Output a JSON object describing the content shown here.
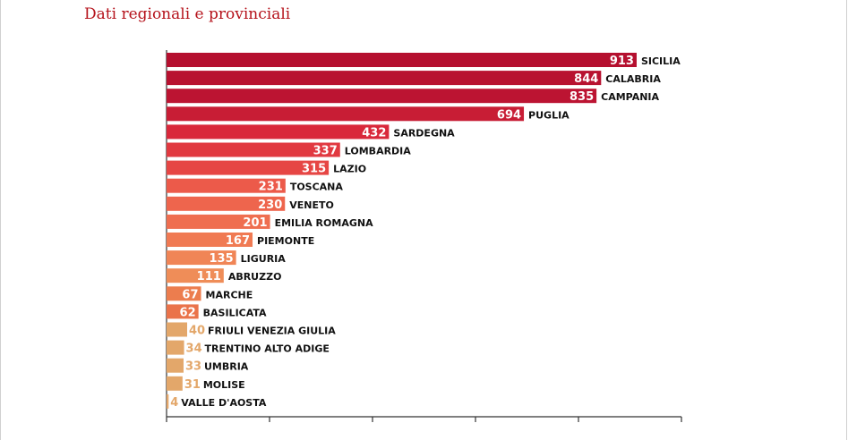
{
  "page": {
    "title": "Dati regionali e provinciali"
  },
  "colors": {
    "title": "#b5121b",
    "axis": "#333333",
    "label_light": "#ffffff"
  },
  "chart_data": {
    "type": "bar",
    "orientation": "horizontal",
    "title": "",
    "xlabel": "",
    "ylabel": "",
    "grid": false,
    "categories": [
      "SICILIA",
      "CALABRIA",
      "CAMPANIA",
      "PUGLIA",
      "SARDEGNA",
      "LOMBARDIA",
      "LAZIO",
      "TOSCANA",
      "VENETO",
      "EMILIA ROMAGNA",
      "PIEMONTE",
      "LIGURIA",
      "ABRUZZO",
      "MARCHE",
      "BASILICATA",
      "FRIULI VENEZIA GIULIA",
      "TRENTINO ALTO ADIGE",
      "UMBRIA",
      "MOLISE",
      "VALLE D'AOSTA"
    ],
    "values": [
      913,
      844,
      835,
      694,
      432,
      337,
      315,
      231,
      230,
      201,
      167,
      135,
      111,
      67,
      62,
      40,
      34,
      33,
      31,
      4
    ],
    "bar_colors": [
      "#b5102f",
      "#b81230",
      "#bc1432",
      "#c81d35",
      "#d9283b",
      "#e13940",
      "#e64644",
      "#ec5a4a",
      "#ee654d",
      "#ef6e50",
      "#f07a53",
      "#f08556",
      "#ef8d58",
      "#ec7d4e",
      "#ea734a",
      "#e3a76a",
      "#e3a76a",
      "#e3a76a",
      "#e3a76a",
      "#e3a76a"
    ],
    "label_colors": [
      "#ffffff",
      "#ffffff",
      "#ffffff",
      "#ffffff",
      "#ffffff",
      "#ffffff",
      "#ffffff",
      "#ffffff",
      "#ffffff",
      "#ffffff",
      "#ffffff",
      "#ffffff",
      "#ffffff",
      "#ffffff",
      "#ffffff",
      "#e3a76a",
      "#e3a76a",
      "#e3a76a",
      "#e3a76a",
      "#e3a76a"
    ],
    "xlim": [
      0,
      1000
    ]
  }
}
